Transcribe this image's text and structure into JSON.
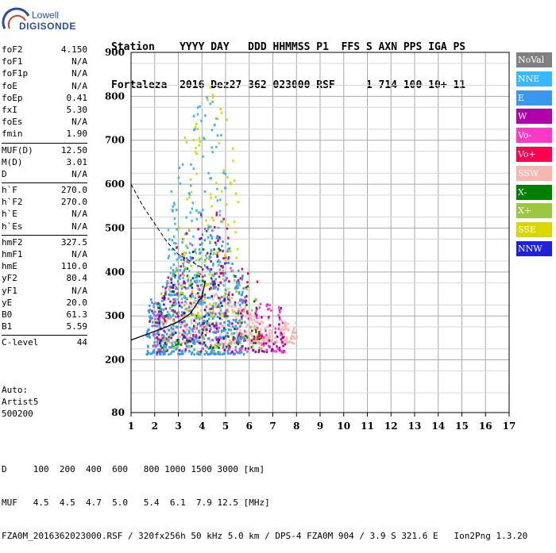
{
  "logo": {
    "line1": "Lowell",
    "line2": "DIGISONDE"
  },
  "header": {
    "row1": "Station    YYYY DAY   DDD HHMMSS P1  FFS S AXN PPS IGA PS",
    "row2": "Fortaleza  2016 Dez27 362 023000 RSF     1 714 100 10+ 11"
  },
  "params": [
    {
      "label": "foF2",
      "value": "4.150"
    },
    {
      "label": "foF1",
      "value": "N/A"
    },
    {
      "label": "foF1p",
      "value": "N/A"
    },
    {
      "label": "foE",
      "value": "N/A"
    },
    {
      "label": "foEp",
      "value": "0.41"
    },
    {
      "label": "fxI",
      "value": "5.30"
    },
    {
      "label": "foEs",
      "value": "N/A"
    },
    {
      "label": "fmin",
      "value": "1.90"
    },
    {
      "sep": true
    },
    {
      "label": "MUF(D)",
      "value": "12.50"
    },
    {
      "label": "M(D)",
      "value": "3.01"
    },
    {
      "label": "D",
      "value": "N/A"
    },
    {
      "sep": true
    },
    {
      "label": "h`F",
      "value": "270.0"
    },
    {
      "label": "h`F2",
      "value": "270.0"
    },
    {
      "label": "h`E",
      "value": "N/A"
    },
    {
      "label": "h`Es",
      "value": "N/A"
    },
    {
      "sep": true
    },
    {
      "label": "hmF2",
      "value": "327.5"
    },
    {
      "label": "hmF1",
      "value": "N/A"
    },
    {
      "label": "hmE",
      "value": "110.0"
    },
    {
      "label": "yF2",
      "value": "80.4"
    },
    {
      "label": "yF1",
      "value": "N/A"
    },
    {
      "label": "yE",
      "value": "20.0"
    },
    {
      "label": "B0",
      "value": "61.3"
    },
    {
      "label": "B1",
      "value": "5.59"
    },
    {
      "sep": true
    },
    {
      "label": "C-level",
      "value": "44"
    }
  ],
  "auto": {
    "line1": "Auto:",
    "line2": "Artist5",
    "line3": "500200"
  },
  "legend": [
    {
      "label": "NoVal",
      "color": "#808080"
    },
    {
      "label": "NNE",
      "color": "#38b8ff"
    },
    {
      "label": "E",
      "color": "#3898f0"
    },
    {
      "label": "W",
      "color": "#b000a8"
    },
    {
      "label": "Vo-",
      "color": "#ff38c8"
    },
    {
      "label": "Vo+",
      "color": "#ff0050"
    },
    {
      "label": "SSW",
      "color": "#f4b8b0"
    },
    {
      "label": "X-",
      "color": "#008000"
    },
    {
      "label": "X+",
      "color": "#9cc840"
    },
    {
      "label": "SSE",
      "color": "#d8d800"
    },
    {
      "label": "NNW",
      "color": "#2020e0"
    }
  ],
  "footer": {
    "line1": "D     100  200  400  600   800 1000 1500 3000 [km]",
    "line2": "MUF   4.5  4.5  4.7  5.0   5.4  6.1  7.9 12.5 [MHz]",
    "line3": "FZA0M_2016362023000.RSF / 320fx256h 50 kHz 5.0 km / DPS-4 FZA0M 904 / 3.9 S 321.6 E   Ion2Png 1.3.20"
  },
  "chart_data": {
    "type": "scatter",
    "xlim": [
      1,
      17
    ],
    "ylim": [
      80,
      900
    ],
    "xticks": [
      1,
      2,
      3,
      4,
      5,
      6,
      7,
      8,
      9,
      10,
      11,
      12,
      13,
      14,
      15,
      16,
      17
    ],
    "yticks": [
      80,
      200,
      300,
      400,
      500,
      600,
      700,
      800,
      900
    ],
    "grid": true,
    "clusters": [
      {
        "name": "SSW",
        "color": "#f4b8b0",
        "xmin": 2.0,
        "xmax": 8.0,
        "ymin": 240,
        "ymax": 380,
        "count": 420
      },
      {
        "name": "E",
        "color": "#3898f0",
        "xmin": 1.6,
        "xmax": 5.8,
        "ymin": 215,
        "ymax": 520,
        "count": 520
      },
      {
        "name": "NNE",
        "color": "#38b8ff",
        "xmin": 2.5,
        "xmax": 5.0,
        "ymin": 300,
        "ymax": 800,
        "count": 180
      },
      {
        "name": "W",
        "color": "#b000a8",
        "xmin": 1.7,
        "xmax": 7.5,
        "ymin": 220,
        "ymax": 500,
        "count": 130
      },
      {
        "name": "Vo-",
        "color": "#ff38c8",
        "xmin": 1.8,
        "xmax": 7.5,
        "ymin": 220,
        "ymax": 510,
        "count": 110
      },
      {
        "name": "Vo+",
        "color": "#ff0050",
        "xmin": 2.0,
        "xmax": 6.5,
        "ymin": 250,
        "ymax": 560,
        "count": 90
      },
      {
        "name": "X-",
        "color": "#008000",
        "xmin": 2.0,
        "xmax": 6.5,
        "ymin": 230,
        "ymax": 480,
        "count": 90
      },
      {
        "name": "X+",
        "color": "#9cc840",
        "xmin": 2.0,
        "xmax": 6.5,
        "ymin": 220,
        "ymax": 520,
        "count": 90
      },
      {
        "name": "SSE",
        "color": "#d8d800",
        "xmin": 3.0,
        "xmax": 5.5,
        "ymin": 300,
        "ymax": 830,
        "count": 110
      },
      {
        "name": "NNW",
        "color": "#2020e0",
        "xmin": 2.0,
        "xmax": 5.0,
        "ymin": 240,
        "ymax": 470,
        "count": 50
      }
    ],
    "profile_dashed": {
      "x": [
        1.0,
        1.5,
        2.0,
        2.5,
        3.0,
        3.5,
        4.0
      ],
      "y": [
        600,
        550,
        510,
        470,
        440,
        425,
        410
      ]
    },
    "profile_solid": {
      "x": [
        1.0,
        1.5,
        2.0,
        2.5,
        3.0,
        3.5,
        4.0,
        4.15
      ],
      "y": [
        245,
        255,
        265,
        275,
        287,
        305,
        345,
        380
      ]
    }
  }
}
